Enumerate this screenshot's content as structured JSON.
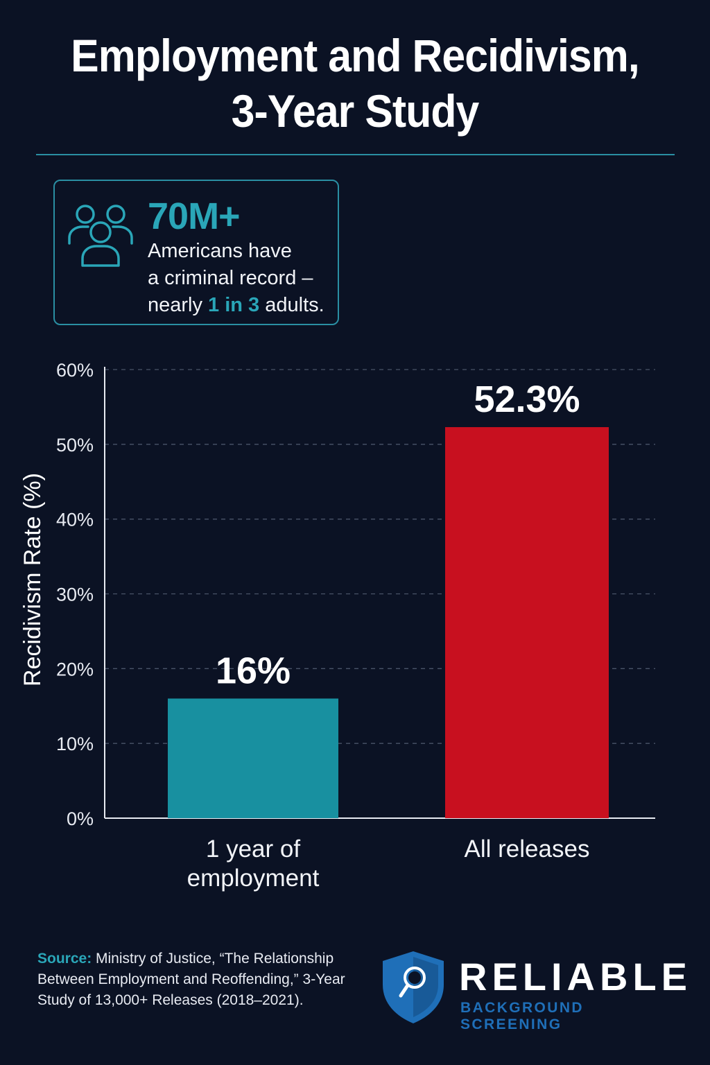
{
  "title": {
    "line1": "Employment and Recidivism,",
    "line2": "3-Year Study"
  },
  "stat": {
    "icon": "people-group-icon",
    "value": "70M+",
    "line1": "Americans have",
    "line2": "a criminal record –",
    "line3_prefix": "nearly ",
    "line3_highlight": "1 in 3",
    "line3_suffix": " adults."
  },
  "colors": {
    "background": "#0b1224",
    "accent": "#2aa6b8",
    "employment_bar": "#1890a0",
    "all_releases_bar": "#c8101f",
    "grid": "#4a5468"
  },
  "chart_data": {
    "type": "bar",
    "ylabel": "Recidivism Rate (%)",
    "xlabel": "",
    "ylim": [
      0,
      60
    ],
    "yticks": [
      "0%",
      "10%",
      "20%",
      "30%",
      "40%",
      "50%",
      "60%"
    ],
    "grid": true,
    "categories": [
      [
        "1 year of",
        "employment"
      ],
      [
        "All releases"
      ]
    ],
    "values": [
      16,
      52.3
    ],
    "data_labels": [
      "16%",
      "52.3%"
    ]
  },
  "source": {
    "label": "Source:",
    "text": " Ministry of Justice, “The Relationship Between Employment and Reoffending,” 3-Year Study of 13,000+ Releases (2018–2021)."
  },
  "logo": {
    "icon": "magnifier-shield-icon",
    "name": "RELIABLE",
    "tagline": "BACKGROUND SCREENING"
  }
}
